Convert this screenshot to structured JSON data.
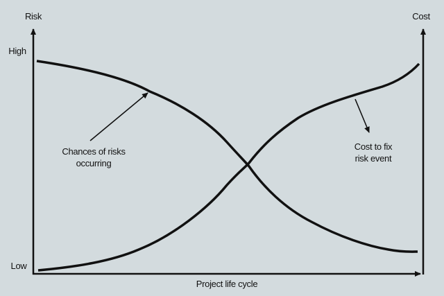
{
  "left_axis": {
    "title": "Risk",
    "high_label": "High",
    "low_label": "Low"
  },
  "right_axis": {
    "title": "Cost"
  },
  "x_axis": {
    "title": "Project life cycle"
  },
  "annotations": {
    "risk_curve": {
      "line1": "Chances of risks",
      "line2": "occurring"
    },
    "cost_curve": {
      "line1": "Cost to fix",
      "line2": "risk event"
    }
  },
  "colors": {
    "background": "#d3dbde",
    "ink": "#111111"
  }
}
